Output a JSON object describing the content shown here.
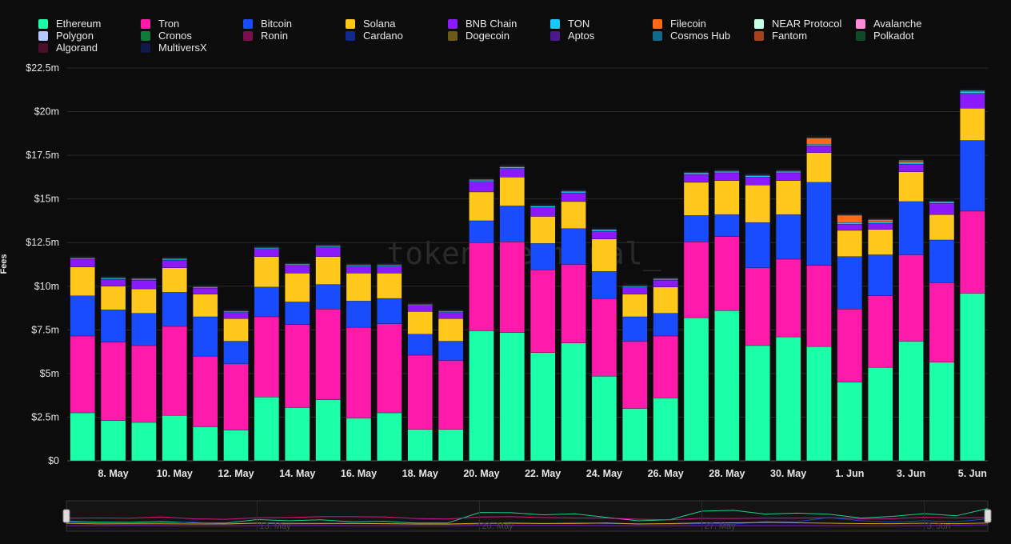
{
  "chart_data": {
    "type": "bar",
    "stacked": true,
    "ylabel": "Fees",
    "ylim": [
      0,
      22500000
    ],
    "yticks": [
      {
        "value": 0,
        "label": "$0"
      },
      {
        "value": 2500000,
        "label": "$2.5m"
      },
      {
        "value": 5000000,
        "label": "$5m"
      },
      {
        "value": 7500000,
        "label": "$7.5m"
      },
      {
        "value": 10000000,
        "label": "$10m"
      },
      {
        "value": 12500000,
        "label": "$12.5m"
      },
      {
        "value": 15000000,
        "label": "$15m"
      },
      {
        "value": 17500000,
        "label": "$17.5m"
      },
      {
        "value": 20000000,
        "label": "$20m"
      },
      {
        "value": 22500000,
        "label": "$22.5m"
      }
    ],
    "grid": true,
    "legend_position": "top",
    "watermark": "token terminal_",
    "categories": [
      "7 May",
      "8 May",
      "9 May",
      "10 May",
      "11 May",
      "12 May",
      "13 May",
      "14 May",
      "15 May",
      "16 May",
      "17 May",
      "18 May",
      "19 May",
      "20 May",
      "21 May",
      "22 May",
      "23 May",
      "24 May",
      "25 May",
      "26 May",
      "27 May",
      "28 May",
      "29 May",
      "30 May",
      "31 May",
      "1 Jun",
      "2 Jun",
      "3 Jun",
      "4 Jun",
      "5 Jun"
    ],
    "xtick_labels": [
      {
        "index": 1,
        "label": "8. May"
      },
      {
        "index": 3,
        "label": "10. May"
      },
      {
        "index": 5,
        "label": "12. May"
      },
      {
        "index": 7,
        "label": "14. May"
      },
      {
        "index": 9,
        "label": "16. May"
      },
      {
        "index": 11,
        "label": "18. May"
      },
      {
        "index": 13,
        "label": "20. May"
      },
      {
        "index": 15,
        "label": "22. May"
      },
      {
        "index": 17,
        "label": "24. May"
      },
      {
        "index": 19,
        "label": "26. May"
      },
      {
        "index": 21,
        "label": "28. May"
      },
      {
        "index": 23,
        "label": "30. May"
      },
      {
        "index": 25,
        "label": "1. Jun"
      },
      {
        "index": 27,
        "label": "3. Jun"
      },
      {
        "index": 29,
        "label": "5. Jun"
      }
    ],
    "series": [
      {
        "name": "Ethereum",
        "color": "#1affa8",
        "values": [
          2.75,
          2.3,
          2.2,
          2.6,
          1.95,
          1.75,
          3.65,
          3.05,
          3.5,
          2.45,
          2.75,
          1.8,
          1.8,
          7.45,
          7.35,
          6.2,
          6.75,
          4.85,
          3.0,
          3.6,
          8.2,
          8.6,
          6.6,
          7.1,
          6.55,
          4.5,
          5.35,
          6.85,
          5.65,
          9.6
        ]
      },
      {
        "name": "Tron",
        "color": "#ff1aab",
        "values": [
          4.4,
          4.5,
          4.4,
          5.1,
          4.05,
          3.8,
          4.6,
          4.75,
          5.2,
          5.2,
          5.1,
          4.25,
          3.95,
          5.05,
          5.2,
          4.75,
          4.5,
          4.45,
          3.85,
          3.55,
          4.35,
          4.25,
          4.45,
          4.45,
          4.65,
          4.2,
          4.1,
          4.95,
          4.55,
          4.7
        ]
      },
      {
        "name": "Bitcoin",
        "color": "#1a4cff",
        "values": [
          2.3,
          1.85,
          1.85,
          1.95,
          2.25,
          1.3,
          1.7,
          1.3,
          1.4,
          1.5,
          1.45,
          1.2,
          1.1,
          1.25,
          2.05,
          1.5,
          2.05,
          1.55,
          1.4,
          1.3,
          1.5,
          1.25,
          2.6,
          2.55,
          4.75,
          3.0,
          2.35,
          3.05,
          2.45,
          4.05
        ]
      },
      {
        "name": "Solana",
        "color": "#ffc81a",
        "values": [
          1.65,
          1.35,
          1.4,
          1.4,
          1.3,
          1.3,
          1.75,
          1.65,
          1.6,
          1.6,
          1.45,
          1.3,
          1.3,
          1.65,
          1.65,
          1.55,
          1.55,
          1.85,
          1.3,
          1.5,
          1.9,
          1.95,
          2.15,
          1.95,
          1.7,
          1.5,
          1.45,
          1.7,
          1.45,
          1.85
        ]
      },
      {
        "name": "BNB Chain",
        "color": "#8c1aff",
        "values": [
          0.45,
          0.4,
          0.5,
          0.45,
          0.35,
          0.35,
          0.45,
          0.45,
          0.55,
          0.4,
          0.4,
          0.35,
          0.35,
          0.6,
          0.5,
          0.5,
          0.5,
          0.45,
          0.4,
          0.4,
          0.45,
          0.45,
          0.45,
          0.45,
          0.4,
          0.35,
          0.35,
          0.45,
          0.65,
          0.85
        ]
      },
      {
        "name": "TON",
        "color": "#1ac8ff",
        "values": [
          0.05,
          0.05,
          0.05,
          0.05,
          0.05,
          0.05,
          0.05,
          0.05,
          0.05,
          0.05,
          0.05,
          0.05,
          0.05,
          0.08,
          0.08,
          0.08,
          0.08,
          0.08,
          0.05,
          0.05,
          0.08,
          0.08,
          0.08,
          0.08,
          0.08,
          0.1,
          0.1,
          0.1,
          0.08,
          0.12
        ]
      },
      {
        "name": "Filecoin",
        "color": "#ff6a1a",
        "values": [
          0,
          0,
          0,
          0,
          0,
          0,
          0,
          0,
          0,
          0,
          0,
          0,
          0,
          0,
          0,
          0,
          0,
          0,
          0,
          0,
          0,
          0,
          0,
          0,
          0.35,
          0.4,
          0.1,
          0.08,
          0,
          0
        ]
      },
      {
        "name": "NEAR Protocol",
        "color": "#c8ffe8",
        "values": [
          0.03,
          0.03,
          0.03,
          0.03,
          0.03,
          0.03,
          0.03,
          0.03,
          0.03,
          0.03,
          0.03,
          0.03,
          0.03,
          0.03,
          0.03,
          0.03,
          0.03,
          0.03,
          0.03,
          0.03,
          0.03,
          0.03,
          0.03,
          0.03,
          0.03,
          0.03,
          0.03,
          0.03,
          0.03,
          0.03
        ]
      },
      {
        "name": "Avalanche",
        "color": "#ff8cd8",
        "values": [
          0.02,
          0.02,
          0.02,
          0.02,
          0.02,
          0.02,
          0.02,
          0.02,
          0.02,
          0.02,
          0.02,
          0.02,
          0.02,
          0.02,
          0.02,
          0.02,
          0.02,
          0.02,
          0.02,
          0.02,
          0.02,
          0.02,
          0.02,
          0.02,
          0.02,
          0.02,
          0.02,
          0.02,
          0.02,
          0.02
        ]
      },
      {
        "name": "Polygon",
        "color": "#b4c8ff",
        "values": [
          0.02,
          0.02,
          0.02,
          0.02,
          0.02,
          0.02,
          0.02,
          0.02,
          0.02,
          0.02,
          0.02,
          0.02,
          0.02,
          0.02,
          0.02,
          0.02,
          0.02,
          0.02,
          0.02,
          0.02,
          0.02,
          0.02,
          0.02,
          0.02,
          0.02,
          0.02,
          0.02,
          0.02,
          0.02,
          0.02
        ]
      },
      {
        "name": "Cronos",
        "color": "#0f7a3c",
        "values": [
          0.01,
          0.01,
          0.01,
          0.01,
          0.01,
          0.01,
          0.01,
          0.01,
          0.01,
          0.01,
          0.01,
          0.01,
          0.01,
          0.01,
          0.01,
          0.01,
          0.01,
          0.01,
          0.01,
          0.01,
          0.01,
          0.01,
          0.01,
          0.01,
          0.01,
          0.01,
          0.01,
          0.01,
          0.01,
          0.01
        ]
      },
      {
        "name": "Ronin",
        "color": "#7a0f4c",
        "values": [
          0.01,
          0.01,
          0.01,
          0.01,
          0.01,
          0.01,
          0.01,
          0.01,
          0.01,
          0.01,
          0.01,
          0.01,
          0.01,
          0.01,
          0.01,
          0.01,
          0.01,
          0.01,
          0.01,
          0.01,
          0.01,
          0.01,
          0.01,
          0.01,
          0.01,
          0.01,
          0.01,
          0.01,
          0.01,
          0.01
        ]
      },
      {
        "name": "Cardano",
        "color": "#0f2a8c",
        "values": [
          0.01,
          0.01,
          0.01,
          0.01,
          0.01,
          0.01,
          0.01,
          0.01,
          0.01,
          0.01,
          0.01,
          0.01,
          0.01,
          0.01,
          0.01,
          0.01,
          0.01,
          0.01,
          0.01,
          0.01,
          0.01,
          0.01,
          0.01,
          0.01,
          0.01,
          0.01,
          0.01,
          0.01,
          0.01,
          0.01
        ]
      },
      {
        "name": "Dogecoin",
        "color": "#6a5a1a",
        "values": [
          0.01,
          0.01,
          0.01,
          0.01,
          0.01,
          0.01,
          0.01,
          0.01,
          0.01,
          0.01,
          0.01,
          0.01,
          0.01,
          0.01,
          0.01,
          0.01,
          0.01,
          0.01,
          0.01,
          0.01,
          0.01,
          0.01,
          0.01,
          0.01,
          0.01,
          0.01,
          0.01,
          0.01,
          0.01,
          0.01
        ]
      },
      {
        "name": "Aptos",
        "color": "#4a1a8c",
        "values": [
          0.01,
          0.01,
          0.01,
          0.01,
          0.01,
          0.01,
          0.01,
          0.01,
          0.01,
          0.01,
          0.01,
          0.01,
          0.01,
          0.01,
          0.01,
          0.01,
          0.01,
          0.01,
          0.01,
          0.01,
          0.01,
          0.01,
          0.01,
          0.01,
          0.01,
          0.01,
          0.01,
          0.01,
          0.01,
          0.01
        ]
      },
      {
        "name": "Cosmos Hub",
        "color": "#0f6a8c",
        "values": [
          0.01,
          0.01,
          0.01,
          0.01,
          0.01,
          0.01,
          0.01,
          0.01,
          0.01,
          0.01,
          0.01,
          0.01,
          0.01,
          0.01,
          0.01,
          0.01,
          0.01,
          0.01,
          0.01,
          0.01,
          0.01,
          0.01,
          0.01,
          0.01,
          0.01,
          0.01,
          0.01,
          0.01,
          0.01,
          0.01
        ]
      },
      {
        "name": "Fantom",
        "color": "#a8401a",
        "values": [
          0.01,
          0.01,
          0.01,
          0.01,
          0.01,
          0.01,
          0.01,
          0.01,
          0.01,
          0.01,
          0.01,
          0.01,
          0.01,
          0.01,
          0.01,
          0.01,
          0.01,
          0.01,
          0.01,
          0.01,
          0.01,
          0.01,
          0.01,
          0.01,
          0.01,
          0.01,
          0.01,
          0.01,
          0.01,
          0.01
        ]
      },
      {
        "name": "Polkadot",
        "color": "#0f4a2a",
        "values": [
          0.01,
          0.01,
          0.01,
          0.01,
          0.01,
          0.01,
          0.01,
          0.01,
          0.01,
          0.01,
          0.01,
          0.01,
          0.01,
          0.01,
          0.01,
          0.01,
          0.01,
          0.01,
          0.01,
          0.01,
          0.01,
          0.01,
          0.01,
          0.01,
          0.01,
          0.01,
          0.01,
          0.01,
          0.01,
          0.01
        ]
      },
      {
        "name": "Algorand",
        "color": "#4a0f2a",
        "values": [
          0.01,
          0.01,
          0.01,
          0.01,
          0.01,
          0.01,
          0.01,
          0.01,
          0.01,
          0.01,
          0.01,
          0.01,
          0.01,
          0.01,
          0.01,
          0.01,
          0.01,
          0.01,
          0.01,
          0.01,
          0.01,
          0.01,
          0.01,
          0.01,
          0.01,
          0.01,
          0.01,
          0.01,
          0.01,
          0.01
        ]
      },
      {
        "name": "MultiversX",
        "color": "#0f1a4a",
        "values": [
          0.01,
          0.01,
          0.01,
          0.01,
          0.01,
          0.01,
          0.01,
          0.01,
          0.01,
          0.01,
          0.01,
          0.01,
          0.01,
          0.01,
          0.01,
          0.01,
          0.01,
          0.01,
          0.01,
          0.01,
          0.01,
          0.01,
          0.01,
          0.01,
          0.01,
          0.01,
          0.01,
          0.01,
          0.01,
          0.01
        ]
      }
    ],
    "value_unit_multiplier": 1000000,
    "navigator": {
      "labels": [
        "13. May",
        "20. May",
        "27. May",
        "3. Jun"
      ]
    }
  }
}
